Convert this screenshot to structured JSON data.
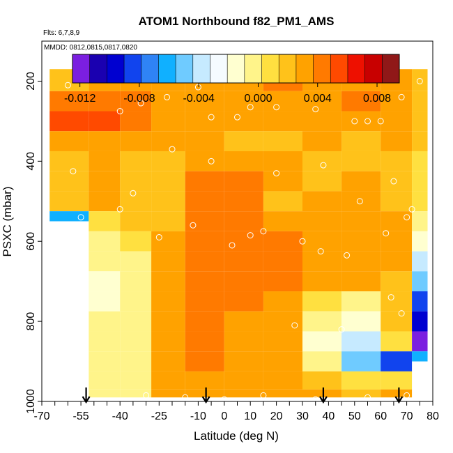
{
  "chart_data": {
    "type": "heatmap",
    "title": "ATOM1 Northbound f82_PM1_AMS",
    "flights_note": "Flts: 6,7,8,9",
    "dates_note": "MMDD: 0812,0815,0817,0820",
    "xlabel": "Latitude (deg N)",
    "ylabel": "PSXC (mbar)",
    "xlim": [
      -70,
      80
    ],
    "ylim": [
      1000,
      100
    ],
    "x_ticks": [
      -70,
      -55,
      -40,
      -25,
      -10,
      0,
      10,
      20,
      30,
      40,
      50,
      60,
      70,
      80
    ],
    "x_tick_labels": [
      "-70",
      "-55",
      "-40",
      "-25",
      "-10",
      "0",
      "10",
      "20",
      "30",
      "40",
      "50",
      "60",
      "70",
      "80"
    ],
    "y_ticks": [
      200,
      400,
      600,
      800,
      1000
    ],
    "y_tick_labels": [
      "200",
      "400",
      "600",
      "800",
      "1000"
    ],
    "colorbar": {
      "range": [
        -0.0125,
        0.0095
      ],
      "tick_values": [
        -0.012,
        -0.008,
        -0.004,
        0.0,
        0.004,
        0.008
      ],
      "tick_labels": [
        "-0.012",
        "-0.008",
        "-0.004",
        "0.000",
        "0.004",
        "0.008"
      ],
      "colors": [
        "#7b1fe0",
        "#1a00b0",
        "#0000d0",
        "#1144ee",
        "#2f83f5",
        "#10b0ff",
        "#6fcbff",
        "#c6eaff",
        "#f5fbff",
        "#ffffd0",
        "#fff48a",
        "#ffe040",
        "#ffc21a",
        "#ffa200",
        "#ff7a00",
        "#ff4a00",
        "#ee1000",
        "#c80000",
        "#901818"
      ]
    },
    "profile_latitudes": [
      -53,
      -7,
      38,
      67
    ],
    "latitude_bands": [
      {
        "lat_min": -67,
        "lat_max": -52,
        "p_bottom": 550,
        "p_top": 170
      },
      {
        "lat_min": -52,
        "lat_max": -40,
        "p_bottom": 990,
        "p_top": 170
      },
      {
        "lat_min": -40,
        "lat_max": -28,
        "p_bottom": 990,
        "p_top": 170
      },
      {
        "lat_min": -28,
        "lat_max": -15,
        "p_bottom": 990,
        "p_top": 170
      },
      {
        "lat_min": -15,
        "lat_max": 0,
        "p_bottom": 990,
        "p_top": 170
      },
      {
        "lat_min": 0,
        "lat_max": 15,
        "p_bottom": 990,
        "p_top": 170
      },
      {
        "lat_min": 15,
        "lat_max": 30,
        "p_bottom": 990,
        "p_top": 170
      },
      {
        "lat_min": 30,
        "lat_max": 45,
        "p_bottom": 990,
        "p_top": 170
      },
      {
        "lat_min": 45,
        "lat_max": 60,
        "p_bottom": 990,
        "p_top": 170
      },
      {
        "lat_min": 60,
        "lat_max": 72,
        "p_bottom": 990,
        "p_top": 170
      },
      {
        "lat_min": 72,
        "lat_max": 78,
        "p_bottom": 900,
        "p_top": 170
      }
    ],
    "pressure_levels": [
      200,
      250,
      300,
      350,
      400,
      450,
      500,
      550,
      600,
      650,
      700,
      750,
      800,
      850,
      900,
      950,
      990
    ],
    "values_by_band": [
      [
        0.0018,
        0.0042,
        0.005,
        0.003,
        0.0024,
        0.002,
        0.0018,
        -0.006,
        null,
        null,
        null,
        null,
        null,
        null,
        null,
        null,
        null
      ],
      [
        0.003,
        0.0044,
        0.0054,
        0.0034,
        0.003,
        0.0026,
        0.003,
        0.001,
        -0.0005,
        -0.0008,
        -0.001,
        -0.001,
        -0.0008,
        -0.0008,
        -0.0007,
        -0.0006,
        -0.0004
      ],
      [
        0.0028,
        0.004,
        0.0046,
        0.0034,
        0.0024,
        0.0016,
        0.0018,
        0.002,
        0.0004,
        0.0,
        -0.0004,
        -0.0006,
        -0.0005,
        -0.0004,
        -0.0004,
        -0.0002,
        -0.0002
      ],
      [
        0.0026,
        0.0034,
        0.0034,
        0.003,
        0.002,
        0.0014,
        0.0014,
        0.002,
        0.0032,
        0.0034,
        0.003,
        0.0028,
        0.0028,
        0.003,
        0.0032,
        0.0034,
        0.0036
      ],
      [
        0.003,
        0.0036,
        0.003,
        0.0026,
        0.003,
        0.004,
        0.0042,
        0.0044,
        0.0046,
        0.0048,
        0.0044,
        0.0042,
        0.004,
        0.004,
        0.004,
        0.0036,
        0.0032
      ],
      [
        0.0036,
        0.0034,
        0.003,
        0.0022,
        0.003,
        0.0038,
        0.004,
        0.004,
        0.0042,
        0.0042,
        0.004,
        0.0038,
        0.0036,
        0.0036,
        0.0034,
        0.0032,
        0.003
      ],
      [
        0.004,
        0.0034,
        0.0028,
        0.0024,
        0.0026,
        0.003,
        0.002,
        0.0034,
        0.004,
        0.004,
        0.004,
        0.0036,
        0.0034,
        0.0032,
        0.003,
        0.0028,
        0.0026
      ],
      [
        0.0036,
        0.0034,
        0.003,
        0.0026,
        0.0016,
        0.002,
        0.003,
        0.0036,
        0.0034,
        0.0036,
        0.003,
        0.001,
        0.0002,
        -0.0016,
        0.0,
        0.002,
        0.0026
      ],
      [
        0.0034,
        0.004,
        0.0032,
        0.0024,
        0.0024,
        0.0026,
        0.003,
        0.0032,
        0.0036,
        0.0034,
        0.0026,
        -0.0004,
        -0.002,
        -0.004,
        -0.0046,
        0.0004,
        0.002
      ],
      [
        0.003,
        0.0032,
        0.003,
        0.0026,
        0.0024,
        0.0024,
        0.0022,
        0.003,
        0.0034,
        0.003,
        0.0024,
        0.002,
        0.0016,
        0.001,
        -0.008,
        0.001,
        0.003
      ],
      [
        0.002,
        0.0024,
        0.002,
        0.0016,
        0.0012,
        0.001,
        0.0008,
        0.0,
        -0.002,
        -0.004,
        -0.005,
        -0.008,
        -0.01,
        -0.012,
        -0.006,
        null,
        null
      ]
    ],
    "sample_points": [
      {
        "lat": -53,
        "p": 190
      },
      {
        "lat": -60,
        "p": 210
      },
      {
        "lat": -40,
        "p": 275
      },
      {
        "lat": -32,
        "p": 255
      },
      {
        "lat": -22,
        "p": 240
      },
      {
        "lat": -10,
        "p": 215
      },
      {
        "lat": -5,
        "p": 290
      },
      {
        "lat": 5,
        "p": 290
      },
      {
        "lat": 10,
        "p": 265
      },
      {
        "lat": 20,
        "p": 265
      },
      {
        "lat": 35,
        "p": 270
      },
      {
        "lat": 42,
        "p": 190
      },
      {
        "lat": 50,
        "p": 300
      },
      {
        "lat": 55,
        "p": 300
      },
      {
        "lat": 60,
        "p": 300
      },
      {
        "lat": 68,
        "p": 240
      },
      {
        "lat": 75,
        "p": 200
      },
      {
        "lat": -58,
        "p": 425
      },
      {
        "lat": -35,
        "p": 480
      },
      {
        "lat": -20,
        "p": 370
      },
      {
        "lat": -5,
        "p": 400
      },
      {
        "lat": 20,
        "p": 430
      },
      {
        "lat": 38,
        "p": 410
      },
      {
        "lat": 52,
        "p": 500
      },
      {
        "lat": 65,
        "p": 450
      },
      {
        "lat": 72,
        "p": 520
      },
      {
        "lat": -40,
        "p": 520
      },
      {
        "lat": -25,
        "p": 590
      },
      {
        "lat": -12,
        "p": 560
      },
      {
        "lat": 3,
        "p": 610
      },
      {
        "lat": 10,
        "p": 585
      },
      {
        "lat": 15,
        "p": 575
      },
      {
        "lat": 30,
        "p": 600
      },
      {
        "lat": 37,
        "p": 625
      },
      {
        "lat": 47,
        "p": 635
      },
      {
        "lat": 64,
        "p": 740
      },
      {
        "lat": 68,
        "p": 780
      },
      {
        "lat": 27,
        "p": 810
      },
      {
        "lat": 45,
        "p": 820
      },
      {
        "lat": 62,
        "p": 580
      },
      {
        "lat": 70,
        "p": 540
      },
      {
        "lat": -55,
        "p": 540
      },
      {
        "lat": -30,
        "p": 985
      },
      {
        "lat": -15,
        "p": 990
      },
      {
        "lat": 0,
        "p": 995
      },
      {
        "lat": 15,
        "p": 985
      },
      {
        "lat": 35,
        "p": 995
      },
      {
        "lat": 55,
        "p": 990
      },
      {
        "lat": 70,
        "p": 985
      },
      {
        "lat": 76,
        "p": 940
      }
    ]
  }
}
